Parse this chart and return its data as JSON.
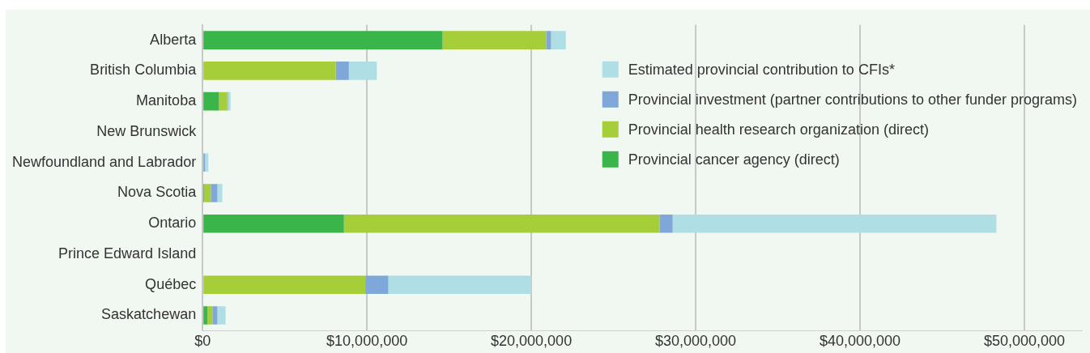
{
  "chart_data": {
    "type": "bar",
    "orientation": "horizontal",
    "stacked": true,
    "categories": [
      "Alberta",
      "British Columbia",
      "Manitoba",
      "New Brunswick",
      "Newfoundland and Labrador",
      "Nova Scotia",
      "Ontario",
      "Prince Edward Island",
      "Québec",
      "Saskatchewan"
    ],
    "series": [
      {
        "name": "Provincial cancer agency (direct)",
        "color": "#3ab54a",
        "values": [
          14600000,
          0,
          1000000,
          0,
          0,
          100000,
          8600000,
          0,
          0,
          300000
        ]
      },
      {
        "name": "Provincial health research organization (direct)",
        "color": "#a6ce39",
        "values": [
          6300000,
          8100000,
          500000,
          0,
          0,
          400000,
          19200000,
          0,
          9900000,
          300000
        ]
      },
      {
        "name": "Provincial investment (partner contributions to other funder programs)",
        "color": "#7fa7d9",
        "values": [
          300000,
          800000,
          50000,
          0,
          150000,
          400000,
          800000,
          0,
          1400000,
          300000
        ]
      },
      {
        "name": "Estimated provincial contribution to CFIs*",
        "color": "#afdfe4",
        "values": [
          900000,
          1700000,
          150000,
          0,
          200000,
          300000,
          19700000,
          50000,
          8700000,
          500000
        ]
      }
    ],
    "xlim": [
      0,
      53500000
    ],
    "xticks": [
      {
        "value": 0,
        "label": "$0"
      },
      {
        "value": 10000000,
        "label": "$10,000,000"
      },
      {
        "value": 20000000,
        "label": "$20,000,000"
      },
      {
        "value": 30000000,
        "label": "$30,000,000"
      },
      {
        "value": 40000000,
        "label": "$40,000,000"
      },
      {
        "value": 50000000,
        "label": "$50,000,000"
      }
    ],
    "grid": "x",
    "legend": "top right"
  }
}
